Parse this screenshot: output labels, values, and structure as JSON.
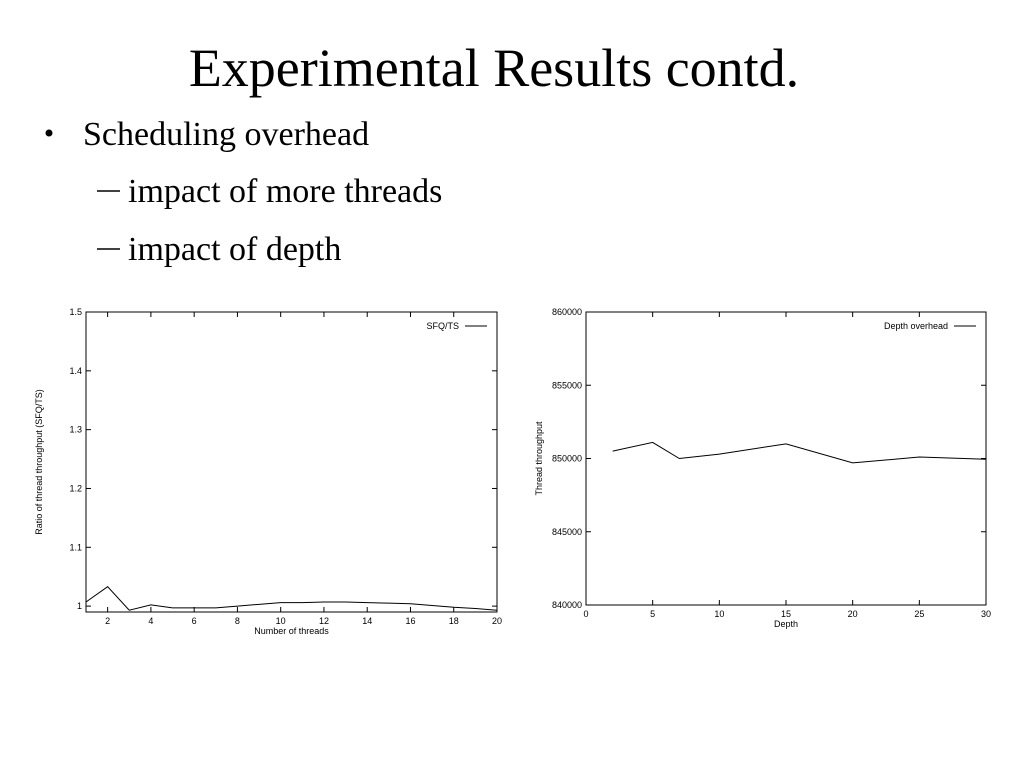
{
  "title": "Experimental Results contd.",
  "bullets": [
    "Scheduling overhead"
  ],
  "sub_bullets": [
    "impact of more threads",
    "impact of depth"
  ],
  "chart_data": [
    {
      "type": "line",
      "xlabel": "Number of threads",
      "ylabel": "Ratio of thread throughput (SFQ/TS)",
      "x": [
        1,
        2,
        3,
        4,
        5,
        6,
        7,
        8,
        9,
        10,
        11,
        12,
        13,
        14,
        15,
        16,
        17,
        18,
        19,
        20
      ],
      "series": [
        {
          "name": "SFQ/TS",
          "color": "#000000",
          "values": [
            1.007,
            1.033,
            0.993,
            1.002,
            0.997,
            0.997,
            0.997,
            1.0,
            1.003,
            1.006,
            1.006,
            1.007,
            1.007,
            1.006,
            1.005,
            1.004,
            1.001,
            0.998,
            0.996,
            0.993
          ]
        }
      ],
      "xlim": [
        1,
        20
      ],
      "xticks": [
        2,
        4,
        6,
        8,
        10,
        12,
        14,
        16,
        18,
        20
      ],
      "ylim": [
        0.99,
        1.5
      ],
      "yticks": [
        1,
        1.1,
        1.2,
        1.3,
        1.4,
        1.5
      ],
      "legend": "upper right"
    },
    {
      "type": "line",
      "xlabel": "Depth",
      "ylabel": "Thread throughput",
      "x": [
        2,
        5,
        7,
        10,
        15,
        20,
        25,
        30
      ],
      "series": [
        {
          "name": "Depth overhead",
          "color": "#000000",
          "values": [
            850500,
            851100,
            850000,
            850300,
            851000,
            849700,
            850100,
            849950
          ]
        }
      ],
      "xlim": [
        0,
        30
      ],
      "xticks": [
        0,
        5,
        10,
        15,
        20,
        25,
        30
      ],
      "ylim": [
        840000,
        860000
      ],
      "yticks": [
        840000,
        845000,
        850000,
        855000,
        860000
      ],
      "legend": "upper right"
    }
  ]
}
